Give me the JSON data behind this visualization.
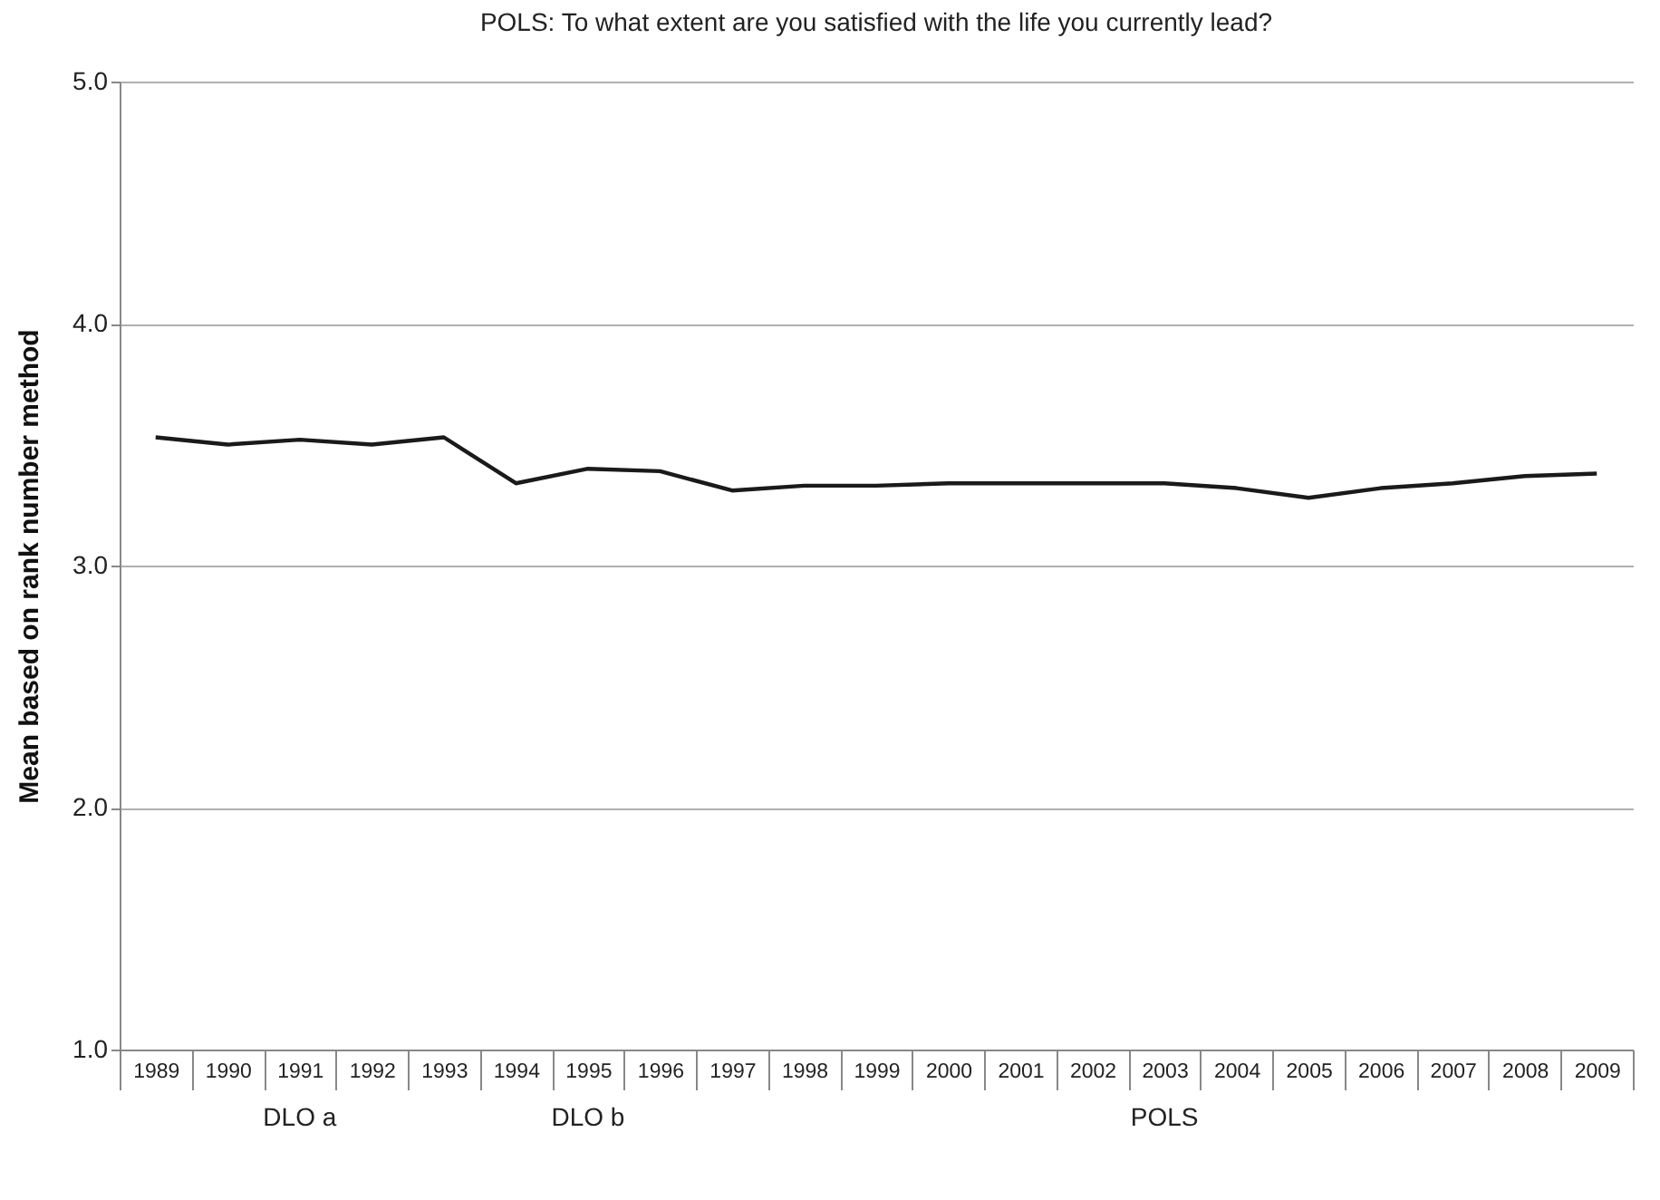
{
  "chart_data": {
    "type": "line",
    "title": "POLS: To what extent are you satisfied with the life you currently lead?",
    "ylabel": "Mean based on rank number method",
    "categories": [
      "1989",
      "1990",
      "1991",
      "1992",
      "1993",
      "1994",
      "1995",
      "1996",
      "1997",
      "1998",
      "1999",
      "2000",
      "2001",
      "2002",
      "2003",
      "2004",
      "2005",
      "2006",
      "2007",
      "2008",
      "2009"
    ],
    "series": [
      {
        "color": "#1a1a1a",
        "values": [
          3.53,
          3.5,
          3.52,
          3.5,
          3.53,
          3.34,
          3.4,
          3.39,
          3.31,
          3.33,
          3.33,
          3.34,
          3.34,
          3.34,
          3.34,
          3.32,
          3.28,
          3.32,
          3.34,
          3.37,
          3.38
        ]
      }
    ],
    "ylim": [
      1,
      5
    ],
    "yticks": [
      {
        "value": 1,
        "label": "1.0"
      },
      {
        "value": 2,
        "label": "2.0"
      },
      {
        "value": 3,
        "label": "3.0"
      },
      {
        "value": 4,
        "label": "4.0"
      },
      {
        "value": 5,
        "label": "5.0"
      }
    ],
    "grid": "y",
    "marker": "none",
    "line_style": "solid",
    "annotations": [
      "DLO a",
      "DLO b",
      "POLS"
    ]
  }
}
